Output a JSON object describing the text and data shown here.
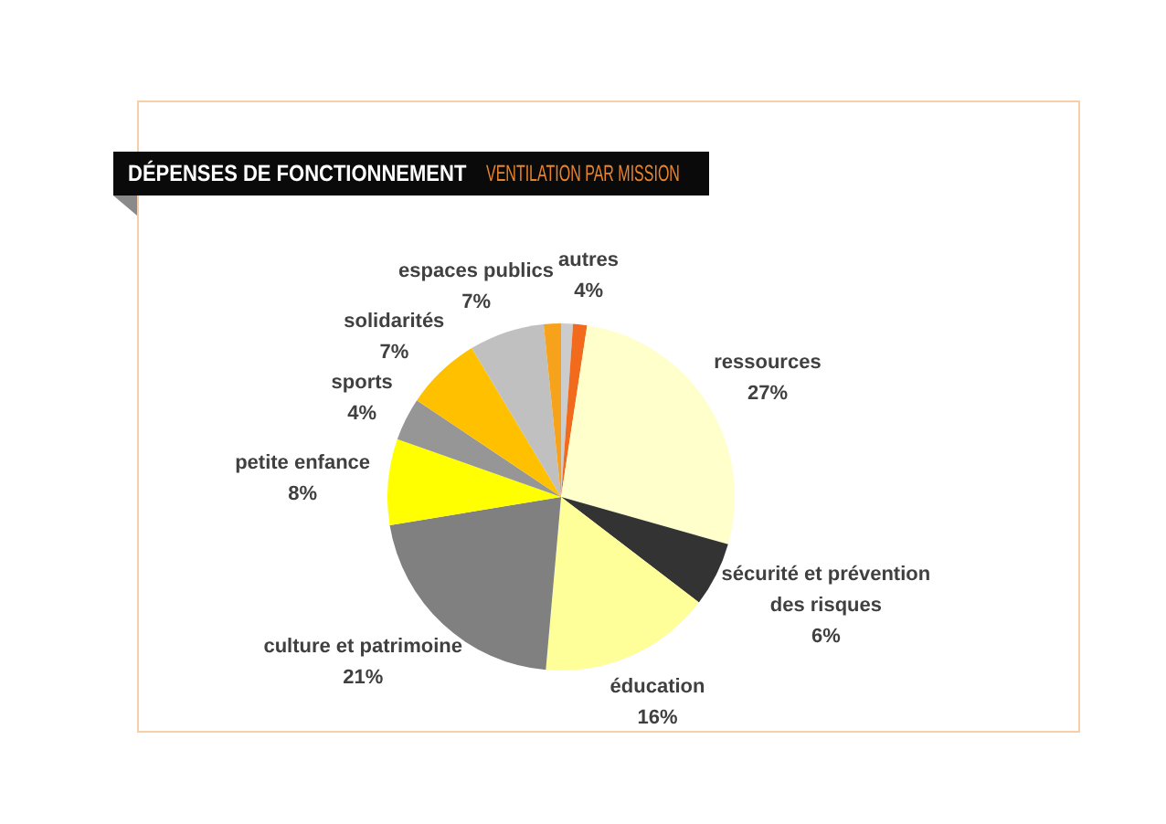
{
  "chart_data": {
    "type": "pie",
    "title": "DÉPENSES DE FONCTIONNEMENT",
    "subtitle": "VENTILATION PAR MISSION",
    "categories": [
      null,
      null,
      "ressources",
      "sécurité et prévention des risques",
      "éducation",
      "culture et patrimoine",
      "petite enfance",
      "sports",
      "solidarités",
      "espaces publics",
      null
    ],
    "values": [
      1.1,
      1.3,
      27,
      6,
      16,
      21,
      8,
      4,
      7,
      7,
      1.6
    ],
    "colors": [
      "#cccccc",
      "#f26b1d",
      "#ffffcc",
      "#333333",
      "#ffff99",
      "#808080",
      "#ffff00",
      "#969696",
      "#ffc000",
      "#c0c0c0",
      "#f7a21b"
    ],
    "value_labels": [
      null,
      null,
      "27%",
      "6%",
      "16%",
      "21%",
      "8%",
      "4%",
      "7%",
      "7%",
      null
    ],
    "annotations": [
      "autres\n4%"
    ]
  }
}
